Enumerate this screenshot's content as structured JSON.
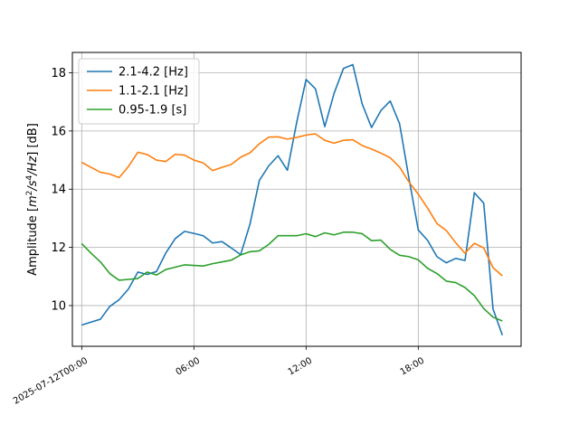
{
  "chart_data": {
    "type": "line",
    "ylabel_prefix": "Amplitude [",
    "ylabel_suffix": "] [dB]",
    "ylabel_units": {
      "m": "m",
      "m_exp": "2",
      "slash1": "/s",
      "s_exp": "4",
      "hz": "/Hz"
    },
    "xlim": [
      -0.5,
      23.5
    ],
    "ylim": [
      8.6,
      18.7
    ],
    "grid": true,
    "legend_position": "upper-left",
    "x_ticks": [
      {
        "x": 0,
        "label": "2025-07-12T00:00"
      },
      {
        "x": 6,
        "label": "06:00"
      },
      {
        "x": 12,
        "label": "12:00"
      },
      {
        "x": 18,
        "label": "18:00"
      }
    ],
    "y_ticks": [
      {
        "y": 10,
        "label": "10"
      },
      {
        "y": 12,
        "label": "12"
      },
      {
        "y": 14,
        "label": "14"
      },
      {
        "y": 16,
        "label": "16"
      },
      {
        "y": 18,
        "label": "18"
      }
    ],
    "x": [
      0,
      0.5,
      1,
      1.5,
      2,
      2.5,
      3,
      3.5,
      4,
      4.5,
      5,
      5.5,
      6,
      6.5,
      7,
      7.5,
      8,
      8.5,
      9,
      9.5,
      10,
      10.5,
      11,
      11.5,
      12,
      12.5,
      13,
      13.5,
      14,
      14.5,
      15,
      15.5,
      16,
      16.5,
      17,
      17.5,
      18,
      18.5,
      19,
      19.5,
      20,
      20.5,
      21,
      21.5,
      22,
      22.5
    ],
    "series": [
      {
        "name": "2.1-4.2 [Hz]",
        "color": "#1f77b4",
        "values": [
          9.33,
          9.43,
          9.53,
          9.97,
          10.2,
          10.57,
          11.15,
          11.07,
          11.17,
          11.81,
          12.3,
          12.55,
          12.48,
          12.4,
          12.15,
          12.2,
          11.98,
          11.75,
          12.8,
          14.3,
          14.8,
          15.15,
          14.65,
          16.3,
          17.77,
          17.45,
          16.15,
          17.3,
          18.15,
          18.28,
          16.93,
          16.12,
          16.7,
          17.03,
          16.25,
          14.38,
          12.6,
          12.24,
          11.68,
          11.47,
          11.62,
          11.55,
          13.88,
          13.52,
          9.88,
          8.98
        ]
      },
      {
        "name": "1.1-2.1 [Hz]",
        "color": "#ff7f0e",
        "values": [
          14.92,
          14.75,
          14.58,
          14.52,
          14.4,
          14.78,
          15.27,
          15.19,
          15.0,
          14.95,
          15.2,
          15.17,
          15.0,
          14.9,
          14.64,
          14.75,
          14.85,
          15.1,
          15.25,
          15.56,
          15.79,
          15.8,
          15.72,
          15.78,
          15.86,
          15.9,
          15.68,
          15.58,
          15.68,
          15.7,
          15.5,
          15.38,
          15.24,
          15.08,
          14.76,
          14.25,
          13.83,
          13.35,
          12.82,
          12.58,
          12.16,
          11.8,
          12.14,
          11.98,
          11.3,
          11.02
        ]
      },
      {
        "name": "0.95-1.9 [s]",
        "color": "#2ca02c",
        "values": [
          12.13,
          11.8,
          11.5,
          11.1,
          10.87,
          10.9,
          10.93,
          11.15,
          11.05,
          11.24,
          11.32,
          11.4,
          11.38,
          11.36,
          11.44,
          11.5,
          11.56,
          11.74,
          11.85,
          11.88,
          12.1,
          12.4,
          12.4,
          12.4,
          12.47,
          12.37,
          12.5,
          12.43,
          12.52,
          12.52,
          12.47,
          12.23,
          12.25,
          11.93,
          11.73,
          11.68,
          11.57,
          11.28,
          11.1,
          10.84,
          10.79,
          10.62,
          10.34,
          9.9,
          9.6,
          9.47
        ]
      }
    ]
  }
}
